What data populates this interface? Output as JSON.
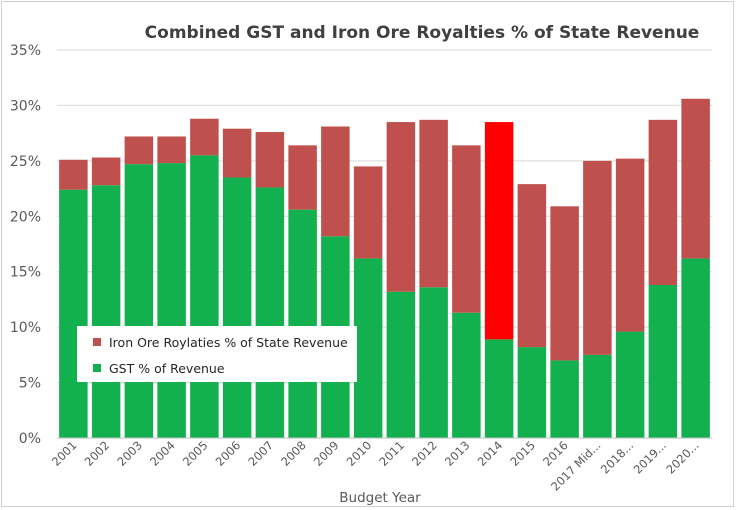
{
  "chart_data": {
    "type": "bar",
    "stacked": true,
    "title": "Combined GST and Iron Ore Royalties % of State Revenue",
    "xlabel": "Budget Year",
    "ylabel": "",
    "ylim": [
      0,
      35
    ],
    "yticks": [
      "0%",
      "5%",
      "10%",
      "15%",
      "20%",
      "25%",
      "30%",
      "35%"
    ],
    "grid": true,
    "legend_position": "left",
    "categories": [
      "2001",
      "2002",
      "2003",
      "2004",
      "2005",
      "2006",
      "2007",
      "2008",
      "2009",
      "2010",
      "2011",
      "2012",
      "2013",
      "2014",
      "2015",
      "2016",
      "2017 Mid...",
      "2018...",
      "2019...",
      "2020..."
    ],
    "series": [
      {
        "name": "GST % of Revenue",
        "color": "#12b04e",
        "values": [
          22.4,
          22.8,
          24.7,
          24.8,
          25.5,
          23.5,
          22.6,
          20.6,
          18.2,
          16.2,
          13.2,
          13.6,
          11.3,
          8.9,
          8.2,
          7.0,
          7.5,
          9.6,
          13.8,
          16.2
        ]
      },
      {
        "name": "Iron Ore Roylaties % of State Revenue",
        "color": "#c0504d",
        "values": [
          2.7,
          2.5,
          2.5,
          2.4,
          3.3,
          4.4,
          5.0,
          5.8,
          9.9,
          8.3,
          15.3,
          15.1,
          15.1,
          19.6,
          14.7,
          13.9,
          17.5,
          15.6,
          14.9,
          14.4
        ]
      }
    ],
    "highlight": {
      "category": "2014",
      "series": "Iron Ore Roylaties % of State Revenue",
      "color": "#ff0000"
    }
  }
}
